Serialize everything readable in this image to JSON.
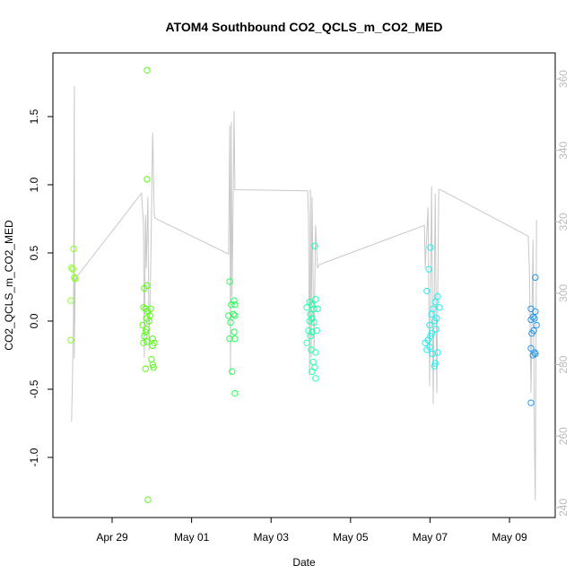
{
  "chart_data": {
    "type": "scatter",
    "title": "ATOM4 Southbound CO2_QCLS_m_CO2_MED",
    "xlabel": "Date",
    "ylabel": "CO2_QCLS_m_CO2_MED",
    "xlim": [
      27.51,
      40.15
    ],
    "ylim": [
      -1.441,
      1.967
    ],
    "y2lim": [
      237.2,
      367.3
    ],
    "xticks": [
      {
        "value": 29,
        "label": "Apr 29"
      },
      {
        "value": 31,
        "label": "May 01"
      },
      {
        "value": 33,
        "label": "May 03"
      },
      {
        "value": 35,
        "label": "May 05"
      },
      {
        "value": 37,
        "label": "May 07"
      },
      {
        "value": 39,
        "label": "May 09"
      }
    ],
    "yticks": [
      {
        "value": -1,
        "label": "-1.0"
      },
      {
        "value": -0.5,
        "label": "-0.5"
      },
      {
        "value": 0,
        "label": "0.0"
      },
      {
        "value": 0.5,
        "label": "0.5"
      },
      {
        "value": 1,
        "label": "1.0"
      },
      {
        "value": 1.5,
        "label": "1.5"
      }
    ],
    "y2ticks": [
      240,
      260,
      280,
      300,
      320,
      340,
      360
    ],
    "y2color": "#bbbbbb",
    "series": [
      {
        "type": "line",
        "axis": "y2",
        "color": "#c8c8c8",
        "x": [
          27.98,
          28.01,
          28.03,
          28.05,
          28.05,
          28.07,
          29.74,
          29.79,
          29.81,
          29.84,
          29.86,
          29.9,
          29.93,
          29.97,
          30.02,
          30.06,
          30.08,
          31.93,
          31.96,
          31.98,
          32.0,
          32.02,
          32.07,
          32.09,
          32.12,
          33.92,
          33.94,
          33.97,
          33.99,
          34.01,
          34.03,
          34.08,
          34.12,
          34.17,
          34.21,
          36.86,
          36.88,
          36.95,
          36.99,
          37.04,
          37.08,
          37.13,
          37.17,
          37.22,
          37.26,
          39.47,
          39.5,
          39.54,
          39.59,
          39.63,
          39.65,
          39.68
        ],
        "values": [
          264,
          281.7,
          294,
          358,
          281.7,
          304,
          328,
          319,
          282,
          322,
          307,
          327,
          284,
          307,
          345,
          322,
          321,
          311,
          347,
          277,
          348,
          299,
          351,
          329,
          329,
          328.7,
          322,
          277,
          329,
          282,
          327,
          284,
          319,
          307,
          308,
          319,
          307,
          324,
          274,
          330,
          269,
          328,
          272,
          329,
          329,
          316,
          307,
          272,
          315,
          256.6,
          242,
          320.5
        ]
      },
      {
        "color": "#88ff22",
        "x": [
          27.98,
          28.01,
          28.03,
          28.05,
          28.07,
          27.96,
          27.96
        ],
        "values": [
          0.39,
          0.38,
          0.53,
          0.32,
          0.31,
          0.15,
          -0.14
        ]
      },
      {
        "color": "#55ff11",
        "x": [
          29.88,
          29.88,
          29.81,
          29.88,
          29.79,
          29.84,
          29.86,
          29.9,
          29.95,
          29.77,
          29.86,
          29.81,
          29.79,
          29.88,
          30.02,
          30.06,
          30.02,
          29.99,
          30.02,
          30.04,
          29.84,
          29.9,
          29.97,
          29.93,
          29.84
        ],
        "values": [
          1.84,
          1.04,
          0.24,
          0.26,
          0.1,
          0.09,
          0.02,
          0.07,
          0.04,
          -0.03,
          -0.06,
          -0.11,
          -0.16,
          -0.15,
          -0.13,
          -0.16,
          -0.18,
          -0.28,
          -0.32,
          -0.34,
          -0.35,
          -1.31,
          0.09,
          0.0,
          -0.08
        ]
      },
      {
        "color": "#22ff55",
        "x": [
          31.96,
          32.07,
          32.0,
          32.09,
          31.93,
          32.09,
          31.98,
          32.07,
          31.96,
          32.09,
          32.02,
          32.09,
          32.05
        ],
        "values": [
          0.29,
          0.15,
          0.12,
          0.12,
          0.04,
          0.04,
          -0.01,
          -0.08,
          -0.13,
          -0.13,
          -0.37,
          -0.53,
          0.05
        ]
      },
      {
        "color": "#22ffaa",
        "x": [
          34.1,
          34.12,
          33.97,
          34.03,
          33.9,
          34.08,
          34.17,
          33.99,
          34.03,
          33.97,
          34.08,
          33.94,
          34.03,
          34.15,
          33.99,
          33.9,
          34.01,
          34.12,
          34.06,
          34.1,
          34.03,
          34.12
        ],
        "values": [
          0.55,
          0.16,
          0.14,
          0.12,
          0.1,
          0.09,
          0.09,
          0.05,
          0.02,
          0.0,
          -0.01,
          -0.07,
          -0.08,
          -0.07,
          -0.11,
          -0.16,
          -0.21,
          -0.23,
          -0.3,
          -0.34,
          -0.37,
          -0.42
        ]
      },
      {
        "color": "#22eeee",
        "x": [
          37.01,
          36.97,
          36.92,
          37.19,
          37.13,
          37.24,
          37.08,
          37.04,
          37.17,
          37.11,
          36.99,
          37.15,
          37.04,
          36.95,
          36.88,
          36.99,
          36.92,
          37.06,
          37.19,
          37.13,
          37.11,
          37.01
        ],
        "values": [
          0.54,
          0.38,
          0.22,
          0.18,
          0.14,
          0.1,
          0.09,
          0.05,
          0.02,
          0.0,
          -0.03,
          -0.06,
          -0.09,
          -0.14,
          -0.16,
          -0.19,
          -0.21,
          -0.24,
          -0.23,
          -0.31,
          -0.33,
          -0.11
        ]
      },
      {
        "color": "#2299ee",
        "x": [
          39.65,
          39.54,
          39.65,
          39.59,
          39.54,
          39.63,
          39.68,
          39.61,
          39.56,
          39.54,
          39.63,
          39.59,
          39.65,
          39.54
        ],
        "values": [
          0.32,
          0.09,
          0.07,
          0.03,
          0.01,
          0.02,
          -0.03,
          -0.07,
          -0.09,
          -0.2,
          -0.23,
          -0.25,
          -0.24,
          -0.6
        ]
      }
    ]
  }
}
